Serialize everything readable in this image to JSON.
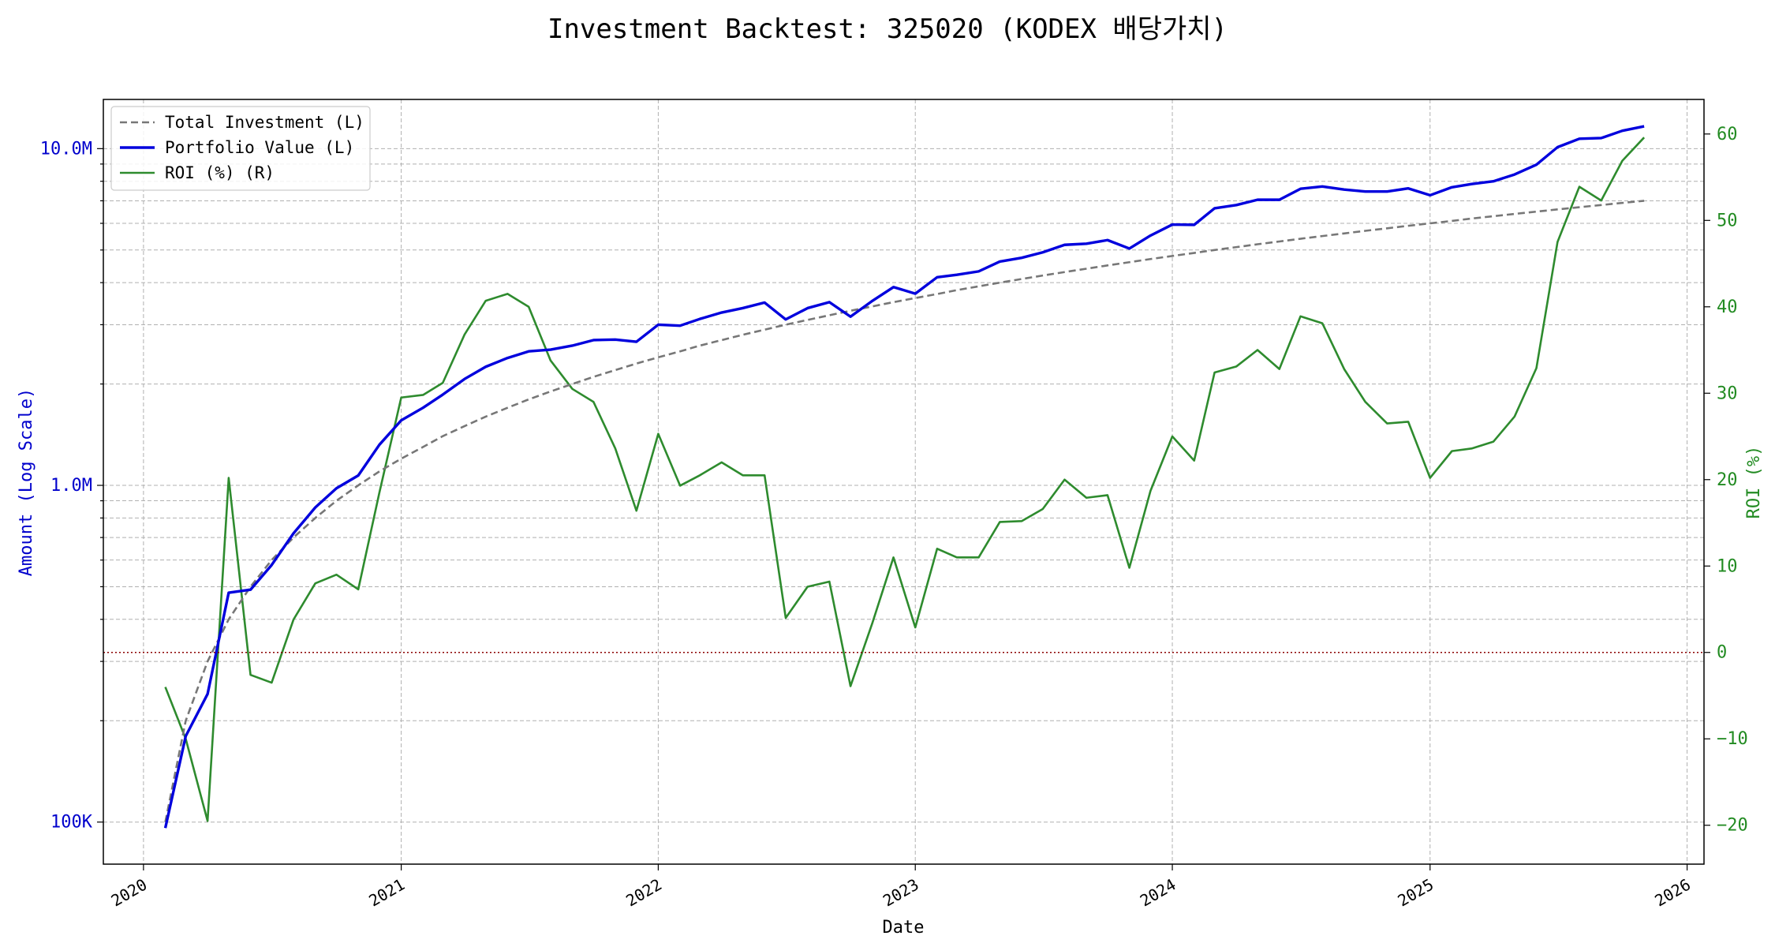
{
  "chart_data": {
    "type": "line",
    "title": "Investment Backtest: 325020 (KODEX 배당가치)",
    "xlabel": "Date",
    "ylabel_left": "Amount (Log Scale)",
    "ylabel_right": "ROI (%)",
    "x_ticks": [
      "2020",
      "2021",
      "2022",
      "2023",
      "2024",
      "2025",
      "2026"
    ],
    "y_left_ticks": [
      {
        "value": 100000,
        "label": "100K"
      },
      {
        "value": 1000000,
        "label": "1.0M"
      },
      {
        "value": 10000000,
        "label": "10.0M"
      }
    ],
    "y_right_ticks": [
      {
        "value": -20,
        "label": "−20"
      },
      {
        "value": -10,
        "label": "−10"
      },
      {
        "value": 0,
        "label": "0"
      },
      {
        "value": 10,
        "label": "10"
      },
      {
        "value": 20,
        "label": "20"
      },
      {
        "value": 30,
        "label": "30"
      },
      {
        "value": 40,
        "label": "40"
      },
      {
        "value": 50,
        "label": "50"
      },
      {
        "value": 60,
        "label": "60"
      }
    ],
    "y_left_scale": "log",
    "y_left_lim": [
      75000,
      14000000
    ],
    "y_right_lim": [
      -24.5,
      64
    ],
    "x_lim": [
      "2019-11-05",
      "2026-01-25"
    ],
    "grid": true,
    "reference_line": {
      "axis": "right",
      "value": 0,
      "color": "#8b0000",
      "style": "dotted"
    },
    "legend": {
      "placement": "top-left",
      "entries": [
        {
          "label": "Total Investment (L)",
          "color": "#777777",
          "style": "dashed"
        },
        {
          "label": "Portfolio Value (L)",
          "color": "#0000dd",
          "style": "solid"
        },
        {
          "label": "ROI (%) (R)",
          "color": "#2e8b2e",
          "style": "solid"
        }
      ]
    },
    "x": [
      "2020-02-01",
      "2020-03-01",
      "2020-04-01",
      "2020-05-01",
      "2020-06-01",
      "2020-07-01",
      "2020-08-01",
      "2020-09-01",
      "2020-10-01",
      "2020-11-01",
      "2020-12-01",
      "2021-01-01",
      "2021-02-01",
      "2021-03-01",
      "2021-04-01",
      "2021-05-01",
      "2021-06-01",
      "2021-07-01",
      "2021-08-01",
      "2021-09-01",
      "2021-10-01",
      "2021-11-01",
      "2021-12-01",
      "2022-01-01",
      "2022-02-01",
      "2022-03-01",
      "2022-04-01",
      "2022-05-01",
      "2022-06-01",
      "2022-07-01",
      "2022-08-01",
      "2022-09-01",
      "2022-10-01",
      "2022-11-01",
      "2022-12-01",
      "2023-01-01",
      "2023-02-01",
      "2023-03-01",
      "2023-04-01",
      "2023-05-01",
      "2023-06-01",
      "2023-07-01",
      "2023-08-01",
      "2023-09-01",
      "2023-10-01",
      "2023-11-01",
      "2023-12-01",
      "2024-01-01",
      "2024-02-01",
      "2024-03-01",
      "2024-04-01",
      "2024-05-01",
      "2024-06-01",
      "2024-07-01",
      "2024-08-01",
      "2024-09-01",
      "2024-10-01",
      "2024-11-01",
      "2024-12-01",
      "2025-01-01",
      "2025-02-01",
      "2025-03-01",
      "2025-04-01",
      "2025-05-01",
      "2025-06-01",
      "2025-07-01",
      "2025-08-01",
      "2025-09-01",
      "2025-10-01",
      "2025-11-01"
    ],
    "series": [
      {
        "name": "Total Investment (L)",
        "axis": "left",
        "color": "#777777",
        "values": [
          100000,
          200000,
          300000,
          400000,
          500000,
          600000,
          700000,
          800000,
          900000,
          1000000,
          1100000,
          1200000,
          1300000,
          1400000,
          1500000,
          1600000,
          1700000,
          1800000,
          1900000,
          2000000,
          2100000,
          2200000,
          2300000,
          2400000,
          2500000,
          2600000,
          2700000,
          2800000,
          2900000,
          3000000,
          3100000,
          3200000,
          3300000,
          3400000,
          3500000,
          3600000,
          3700000,
          3800000,
          3900000,
          4000000,
          4100000,
          4200000,
          4300000,
          4400000,
          4500000,
          4600000,
          4700000,
          4800000,
          4900000,
          5000000,
          5100000,
          5200000,
          5300000,
          5400000,
          5500000,
          5600000,
          5700000,
          5800000,
          5900000,
          6000000,
          6100000,
          6200000,
          6300000,
          6400000,
          6500000,
          6600000,
          6700000,
          6800000,
          6900000,
          7000000
        ]
      },
      {
        "name": "Portfolio Value (L)",
        "axis": "left",
        "color": "#0000dd",
        "values": [
          96000,
          180000,
          240000,
          480000,
          490000,
          580000,
          720000,
          860000,
          980000,
          1070000,
          1320000,
          1560000,
          1700000,
          1860000,
          2070000,
          2250000,
          2390000,
          2500000,
          2530000,
          2600000,
          2700000,
          2710000,
          2670000,
          3000000,
          2980000,
          3120000,
          3260000,
          3360000,
          3490000,
          3110000,
          3360000,
          3500000,
          3170000,
          3530000,
          3880000,
          3710000,
          4150000,
          4220000,
          4320000,
          4620000,
          4740000,
          4920000,
          5180000,
          5220000,
          5350000,
          5050000,
          5520000,
          5950000,
          5940000,
          6650000,
          6800000,
          7050000,
          7050000,
          7600000,
          7720000,
          7560000,
          7460000,
          7460000,
          7620000,
          7270000,
          7680000,
          7850000,
          8000000,
          8380000,
          8960000,
          10100000,
          10700000,
          10750000,
          11300000,
          11650000
        ]
      },
      {
        "name": "ROI (%) (R)",
        "axis": "right",
        "color": "#2e8b2e",
        "values": [
          -4,
          -10,
          -19.5,
          20.2,
          -2.6,
          -3.5,
          3.8,
          8,
          9,
          7.3,
          18.5,
          29.5,
          29.8,
          31.2,
          36.8,
          40.7,
          41.5,
          40,
          33.8,
          30.5,
          29,
          23.6,
          16.4,
          25.3,
          19.3,
          20.5,
          22,
          20.5,
          20.5,
          4,
          7.6,
          8.2,
          -3.9,
          3.4,
          11,
          2.9,
          12,
          11,
          11,
          15.1,
          15.2,
          16.6,
          20,
          17.9,
          18.2,
          9.8,
          18.7,
          25,
          22.2,
          32.4,
          33.1,
          35,
          32.8,
          38.9,
          38.1,
          32.8,
          29,
          26.5,
          26.7,
          20.2,
          23.3,
          23.6,
          24.4,
          27.3,
          32.9,
          47.5,
          53.9,
          52.3,
          56.9,
          59.6
        ]
      }
    ]
  }
}
